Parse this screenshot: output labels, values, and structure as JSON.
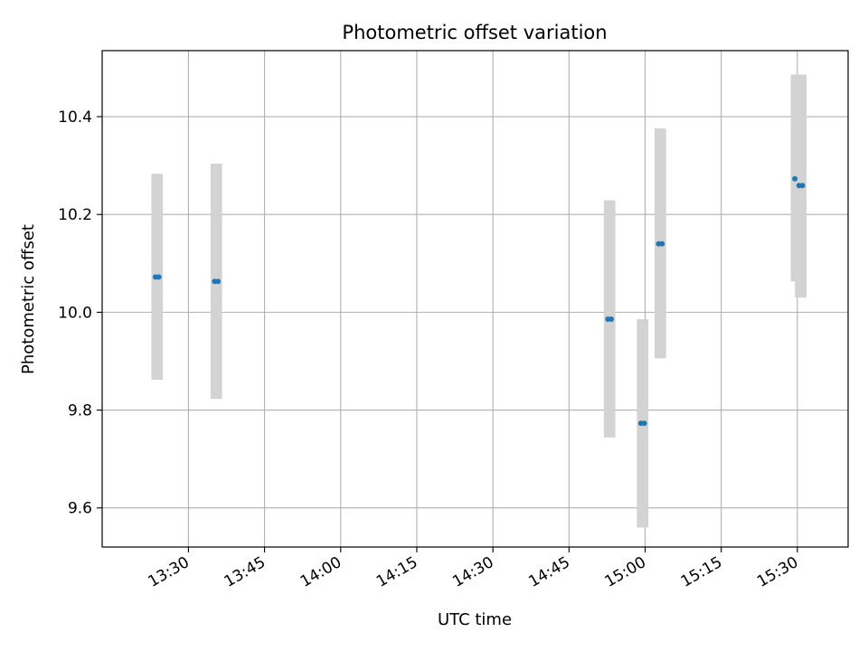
{
  "chart_data": {
    "type": "scatter",
    "title": "Photometric offset variation",
    "xlabel": "UTC time",
    "ylabel": "Photometric offset",
    "xlim": [
      "13:13",
      "15:40"
    ],
    "ylim": [
      9.52,
      10.535
    ],
    "x_ticks": [
      "13:30",
      "13:45",
      "14:00",
      "14:15",
      "14:30",
      "14:45",
      "15:00",
      "15:15",
      "15:30"
    ],
    "y_ticks": [
      9.6,
      9.8,
      10.0,
      10.2,
      10.4
    ],
    "y_tick_labels": [
      "9.6",
      "9.8",
      "10.0",
      "10.2",
      "10.4"
    ],
    "grid": true,
    "colors": {
      "marker": "#1f77b4",
      "errorbar": "#d3d3d3",
      "grid": "#b0b0b0"
    },
    "points": [
      {
        "x": "13:23:30",
        "y": 10.072,
        "yerr_low": 9.862,
        "yerr_high": 10.283
      },
      {
        "x": "13:24:10",
        "y": 10.072,
        "yerr_low": 9.862,
        "yerr_high": 10.283
      },
      {
        "x": "13:35:10",
        "y": 10.063,
        "yerr_low": 9.823,
        "yerr_high": 10.304
      },
      {
        "x": "13:35:50",
        "y": 10.063,
        "yerr_low": 9.823,
        "yerr_high": 10.304
      },
      {
        "x": "14:52:40",
        "y": 9.986,
        "yerr_low": 9.744,
        "yerr_high": 10.229
      },
      {
        "x": "14:53:20",
        "y": 9.986,
        "yerr_low": 9.744,
        "yerr_high": 10.229
      },
      {
        "x": "14:59:10",
        "y": 9.773,
        "yerr_low": 9.56,
        "yerr_high": 9.986
      },
      {
        "x": "14:59:50",
        "y": 9.773,
        "yerr_low": 9.56,
        "yerr_high": 9.986
      },
      {
        "x": "15:02:40",
        "y": 10.14,
        "yerr_low": 9.906,
        "yerr_high": 10.376
      },
      {
        "x": "15:03:20",
        "y": 10.14,
        "yerr_low": 9.906,
        "yerr_high": 10.376
      },
      {
        "x": "15:29:30",
        "y": 10.273,
        "yerr_low": 10.063,
        "yerr_high": 10.486
      },
      {
        "x": "15:30:20",
        "y": 10.259,
        "yerr_low": 10.03,
        "yerr_high": 10.486
      },
      {
        "x": "15:31:00",
        "y": 10.259,
        "yerr_low": 10.03,
        "yerr_high": 10.486
      }
    ]
  }
}
